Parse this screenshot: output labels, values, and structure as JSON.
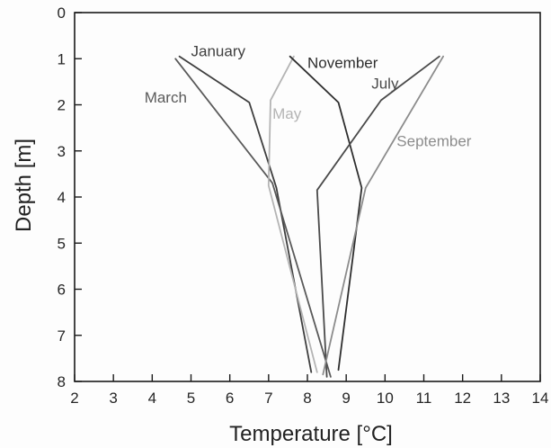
{
  "chart_data": {
    "type": "line",
    "title": "",
    "xlabel": "Temperature [°C]",
    "ylabel": "Depth [m]",
    "xlim": [
      2,
      14
    ],
    "ylim": [
      0,
      8
    ],
    "y_inverted": true,
    "x_ticks": [
      "2",
      "3",
      "4",
      "5",
      "6",
      "7",
      "8",
      "9",
      "10",
      "11",
      "12",
      "13",
      "14"
    ],
    "y_ticks": [
      "0",
      "1",
      "2",
      "3",
      "4",
      "5",
      "6",
      "7",
      "8"
    ],
    "grid": false,
    "legend": "none",
    "series": [
      {
        "name": "January",
        "color": "#3f3f3f",
        "points": [
          [
            4.7,
            0.95
          ],
          [
            6.5,
            1.95
          ],
          [
            7.2,
            3.8
          ],
          [
            8.1,
            7.8
          ]
        ]
      },
      {
        "name": "March",
        "color": "#5a5a5a",
        "points": [
          [
            4.6,
            1.0
          ],
          [
            7.1,
            3.7
          ],
          [
            8.6,
            7.9
          ]
        ]
      },
      {
        "name": "May",
        "color": "#b4b4b4",
        "points": [
          [
            7.65,
            0.95
          ],
          [
            7.05,
            1.9
          ],
          [
            7.0,
            3.75
          ],
          [
            8.25,
            7.8
          ]
        ]
      },
      {
        "name": "November",
        "color": "#2e2e2e",
        "points": [
          [
            7.55,
            0.95
          ],
          [
            8.8,
            1.95
          ],
          [
            9.4,
            3.8
          ],
          [
            8.8,
            7.75
          ]
        ]
      },
      {
        "name": "July",
        "color": "#4a4a4a",
        "points": [
          [
            11.4,
            0.95
          ],
          [
            9.9,
            1.9
          ],
          [
            8.25,
            3.85
          ],
          [
            8.5,
            7.9
          ]
        ]
      },
      {
        "name": "September",
        "color": "#8c8c8c",
        "points": [
          [
            11.5,
            0.95
          ],
          [
            9.5,
            3.8
          ],
          [
            8.4,
            7.85
          ]
        ]
      }
    ]
  }
}
